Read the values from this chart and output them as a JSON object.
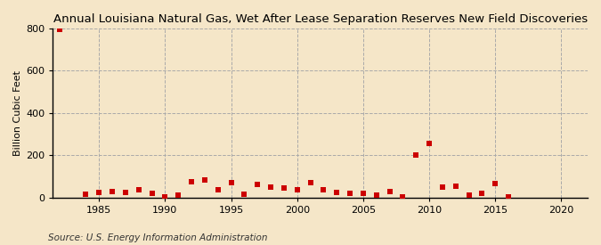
{
  "title": "Annual Louisiana Natural Gas, Wet After Lease Separation Reserves New Field Discoveries",
  "ylabel": "Billion Cubic Feet",
  "source": "Source: U.S. Energy Information Administration",
  "background_color": "#f5e6c8",
  "plot_bg_color": "#f5e6c8",
  "marker_color": "#cc0000",
  "xlim": [
    1981.5,
    2022
  ],
  "ylim": [
    0,
    800
  ],
  "yticks": [
    0,
    200,
    400,
    600,
    800
  ],
  "xticks": [
    1985,
    1990,
    1995,
    2000,
    2005,
    2010,
    2015,
    2020
  ],
  "years": [
    1982,
    1984,
    1985,
    1986,
    1987,
    1988,
    1989,
    1990,
    1991,
    1992,
    1993,
    1994,
    1995,
    1996,
    1997,
    1998,
    1999,
    2000,
    2001,
    2002,
    2003,
    2004,
    2005,
    2006,
    2007,
    2008,
    2009,
    2010,
    2011,
    2012,
    2013,
    2014,
    2015,
    2016
  ],
  "values": [
    795,
    15,
    25,
    30,
    25,
    35,
    20,
    5,
    10,
    75,
    85,
    35,
    70,
    15,
    60,
    50,
    45,
    35,
    70,
    35,
    25,
    20,
    20,
    10,
    30,
    5,
    200,
    255,
    50,
    55,
    10,
    20,
    65,
    5
  ],
  "title_fontsize": 9.5,
  "ylabel_fontsize": 8,
  "tick_fontsize": 8,
  "source_fontsize": 7.5
}
